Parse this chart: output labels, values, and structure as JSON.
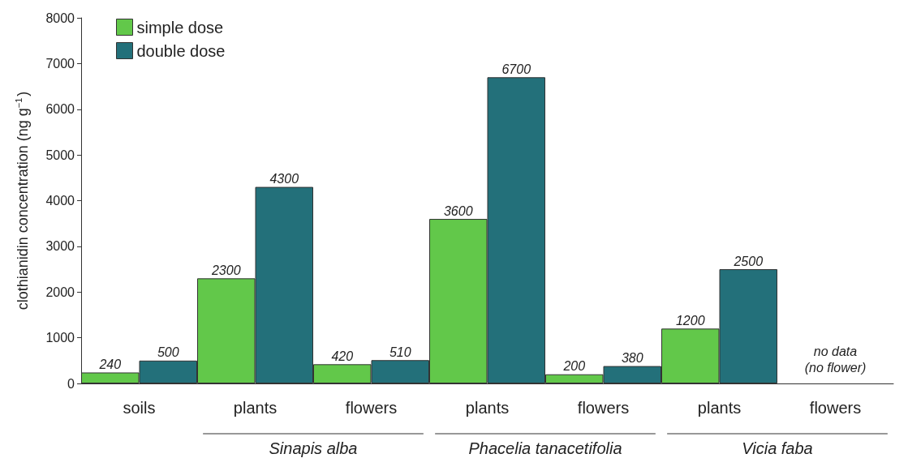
{
  "chart_data": {
    "type": "bar",
    "ylabel": "clothianidin concentration (ng g$^{−1}$)",
    "categories": [
      "soils",
      "plants",
      "flowers",
      "plants",
      "flowers",
      "plants",
      "flowers"
    ],
    "series": [
      {
        "name": "simple dose",
        "color": "#62c84a",
        "values": [
          240,
          2300,
          420,
          3600,
          200,
          1200,
          null
        ]
      },
      {
        "name": "double dose",
        "color": "#23707a",
        "values": [
          500,
          4300,
          510,
          6700,
          380,
          2500,
          null
        ]
      }
    ],
    "ylim": [
      0,
      8000
    ],
    "yticks": [
      0,
      1000,
      2000,
      3000,
      4000,
      5000,
      6000,
      7000,
      8000
    ],
    "grid": false,
    "legend": "top left",
    "data_labels": true,
    "annotations": [
      "Sinapis alba",
      "Phacelia tanacetifolia",
      "Vicia faba",
      "no data\n(no flower)"
    ]
  }
}
